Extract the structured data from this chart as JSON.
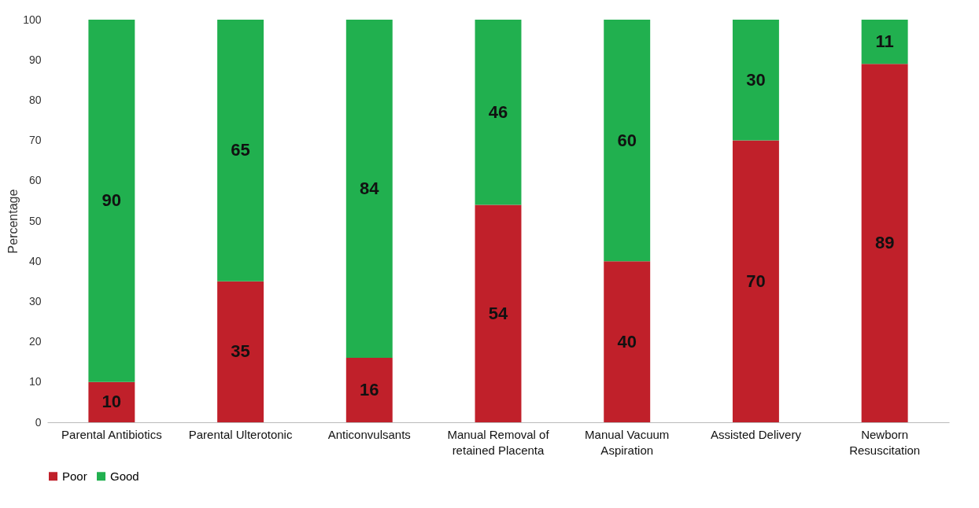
{
  "chart_data": {
    "type": "bar",
    "stacked": true,
    "ylabel": "Percentage",
    "categories": [
      "Parental Antibiotics",
      "Parental Ulterotonic",
      "Anticonvulsants",
      "Manual Removal of retained Placenta",
      "Manual Vacuum Aspiration",
      "Assisted Delivery",
      "Newborn Resuscitation"
    ],
    "series": [
      {
        "name": "Poor",
        "color": "#c0202a",
        "values": [
          10,
          35,
          16,
          54,
          40,
          70,
          89
        ]
      },
      {
        "name": "Good",
        "color": "#21b04f",
        "values": [
          90,
          65,
          84,
          46,
          60,
          30,
          11
        ]
      }
    ],
    "ylim": [
      0,
      100
    ],
    "yticks": [
      0,
      10,
      20,
      30,
      40,
      50,
      60,
      70,
      80,
      90,
      100
    ],
    "data_labels": true,
    "legend": "bottom",
    "grid": false
  }
}
